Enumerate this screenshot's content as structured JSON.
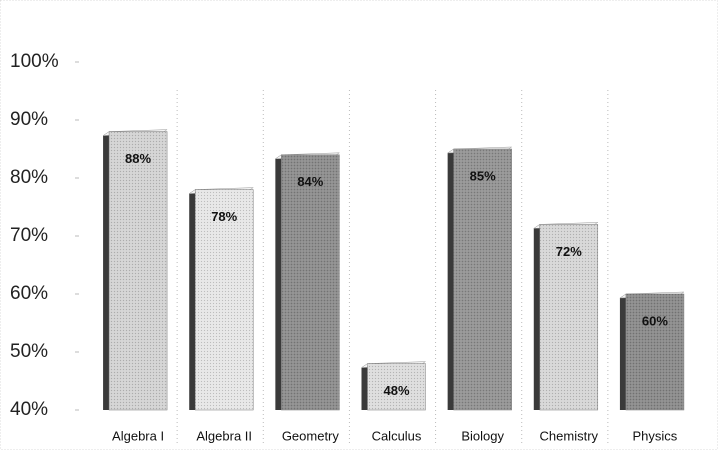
{
  "chart_data": {
    "type": "bar",
    "categories": [
      "Algebra I",
      "Algebra II",
      "Geometry",
      "Calculus",
      "Biology",
      "Chemistry",
      "Physics"
    ],
    "values": [
      88,
      78,
      84,
      48,
      85,
      72,
      60
    ],
    "value_labels": [
      "88%",
      "78%",
      "84%",
      "48%",
      "85%",
      "72%",
      "60%"
    ],
    "colors": [
      "#d2d2d2",
      "#e6e6e6",
      "#8c8c8c",
      "#dcdcdc",
      "#939393",
      "#d6d6d6",
      "#8a8a8a"
    ],
    "ylim": [
      40,
      100
    ],
    "yticks": [
      {
        "value": 40,
        "label": "40%"
      },
      {
        "value": 50,
        "label": "50%"
      },
      {
        "value": 60,
        "label": "60%"
      },
      {
        "value": 70,
        "label": "70%"
      },
      {
        "value": 80,
        "label": "80%"
      },
      {
        "value": 90,
        "label": "90%"
      },
      {
        "value": 100,
        "label": "100%"
      }
    ]
  }
}
